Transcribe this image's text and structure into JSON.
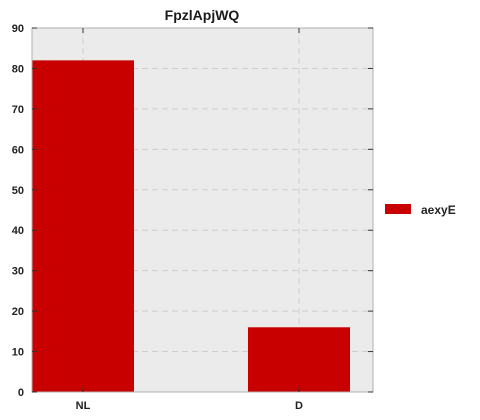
{
  "chart_data": {
    "type": "bar",
    "title": "FpzlApjWQ",
    "xlabel": "",
    "ylabel": "",
    "categories": [
      "NL",
      "D"
    ],
    "series": [
      {
        "name": "aexyE",
        "values": [
          82,
          16
        ],
        "color": "#c80000"
      }
    ],
    "ylim": [
      0,
      90
    ],
    "yticks": [
      0,
      10,
      20,
      30,
      40,
      50,
      60,
      70,
      80,
      90
    ],
    "grid": true,
    "legend_position": "right",
    "background_color": "#ebebeb",
    "grid_color": "#cfcfcf"
  }
}
